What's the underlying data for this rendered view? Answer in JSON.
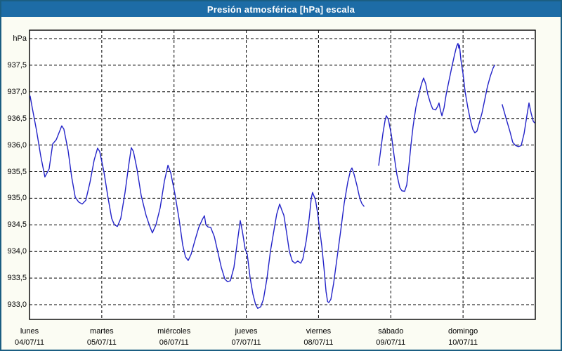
{
  "window": {
    "title": "Presión atmosférica [hPa] escala"
  },
  "colors": {
    "window_border": "#1b5e82",
    "title_bar_bg": "#1d6ca6",
    "title_text": "#ffffff",
    "background": "#fbfcf3",
    "plot_background": "#ffffff",
    "plot_border": "#000000",
    "grid": "#000000",
    "line": "#2323c8",
    "label_text": "#000000"
  },
  "chart_data": {
    "type": "line",
    "title": "Presión atmosférica [hPa] escala",
    "ylabel": "hPa",
    "xlabel": "",
    "ylim": [
      932.72,
      938.16
    ],
    "xlim_hours": [
      0,
      168
    ],
    "grid": "dashed",
    "legend_position": "none",
    "y_unit_label": "hPa",
    "y_ticks": [
      {
        "value": 938.0,
        "label": "hPa"
      },
      {
        "value": 937.5,
        "label": "937,5"
      },
      {
        "value": 937.0,
        "label": "937,0"
      },
      {
        "value": 936.5,
        "label": "936,5"
      },
      {
        "value": 936.0,
        "label": "936,0"
      },
      {
        "value": 935.5,
        "label": "935,5"
      },
      {
        "value": 935.0,
        "label": "935,0"
      },
      {
        "value": 934.5,
        "label": "934,5"
      },
      {
        "value": 934.0,
        "label": "934,0"
      },
      {
        "value": 933.5,
        "label": "933,5"
      },
      {
        "value": 933.0,
        "label": "933,0"
      }
    ],
    "x_ticks": [
      {
        "hour": 0,
        "day": "lunes",
        "date": "04/07/11"
      },
      {
        "hour": 24,
        "day": "martes",
        "date": "05/07/11"
      },
      {
        "hour": 48,
        "day": "miércoles",
        "date": "06/07/11"
      },
      {
        "hour": 72,
        "day": "jueves",
        "date": "07/07/11"
      },
      {
        "hour": 96,
        "day": "viernes",
        "date": "08/07/11"
      },
      {
        "hour": 120,
        "day": "sábado",
        "date": "09/07/11"
      },
      {
        "hour": 144,
        "day": "domingo",
        "date": "10/07/11"
      }
    ],
    "series": [
      {
        "name": "Presión atmosférica",
        "color": "#2323c8",
        "unit": "hPa",
        "segments": [
          [
            [
              0.2,
              936.92
            ],
            [
              0.9,
              936.7
            ],
            [
              2.3,
              936.28
            ],
            [
              3.7,
              935.8
            ],
            [
              5.1,
              935.4
            ],
            [
              6.5,
              935.55
            ],
            [
              7.7,
              936.02
            ],
            [
              8.9,
              936.1
            ],
            [
              10.7,
              936.36
            ],
            [
              11.4,
              936.3
            ],
            [
              12.8,
              935.9
            ],
            [
              14.0,
              935.4
            ],
            [
              15.2,
              935.02
            ],
            [
              16.3,
              934.93
            ],
            [
              17.5,
              934.89
            ],
            [
              18.7,
              934.96
            ],
            [
              20.1,
              935.3
            ],
            [
              21.5,
              935.72
            ],
            [
              22.6,
              935.94
            ],
            [
              23.3,
              935.88
            ],
            [
              24.7,
              935.5
            ],
            [
              26.1,
              935.0
            ],
            [
              27.3,
              934.62
            ],
            [
              28.2,
              934.5
            ],
            [
              29.2,
              934.47
            ],
            [
              30.3,
              934.62
            ],
            [
              31.7,
              935.1
            ],
            [
              32.9,
              935.6
            ],
            [
              33.8,
              935.95
            ],
            [
              34.5,
              935.88
            ],
            [
              35.7,
              935.55
            ],
            [
              37.1,
              935.05
            ],
            [
              38.7,
              934.68
            ],
            [
              39.9,
              934.48
            ],
            [
              40.8,
              934.35
            ],
            [
              41.5,
              934.44
            ],
            [
              42.0,
              934.5
            ],
            [
              43.4,
              934.82
            ],
            [
              44.8,
              935.32
            ],
            [
              46.0,
              935.62
            ],
            [
              46.9,
              935.48
            ],
            [
              48.3,
              935.08
            ],
            [
              49.7,
              934.6
            ],
            [
              50.9,
              934.12
            ],
            [
              51.8,
              933.9
            ],
            [
              52.7,
              933.83
            ],
            [
              53.7,
              933.95
            ],
            [
              54.8,
              934.18
            ],
            [
              56.2,
              934.45
            ],
            [
              57.4,
              934.6
            ],
            [
              58.1,
              934.67
            ],
            [
              58.6,
              934.5
            ],
            [
              59.3,
              934.46
            ],
            [
              60.2,
              934.45
            ],
            [
              61.4,
              934.28
            ],
            [
              62.5,
              934.0
            ],
            [
              63.7,
              933.7
            ],
            [
              64.9,
              933.48
            ],
            [
              65.8,
              933.43
            ],
            [
              66.7,
              933.45
            ],
            [
              67.9,
              933.7
            ],
            [
              69.1,
              934.2
            ],
            [
              70.0,
              934.58
            ],
            [
              70.7,
              934.38
            ],
            [
              71.6,
              934.05
            ],
            [
              72.3,
              933.95
            ],
            [
              73.3,
              933.5
            ],
            [
              74.2,
              933.2
            ],
            [
              75.1,
              933.0
            ],
            [
              75.8,
              932.93
            ],
            [
              76.8,
              932.96
            ],
            [
              77.7,
              933.1
            ],
            [
              78.9,
              933.5
            ],
            [
              80.0,
              934.0
            ],
            [
              81.2,
              934.4
            ],
            [
              82.1,
              934.7
            ],
            [
              83.1,
              934.89
            ],
            [
              83.8,
              934.78
            ],
            [
              84.5,
              934.68
            ],
            [
              85.4,
              934.35
            ],
            [
              86.3,
              934.0
            ],
            [
              87.3,
              933.82
            ],
            [
              88.2,
              933.78
            ],
            [
              89.1,
              933.82
            ],
            [
              90.1,
              933.78
            ],
            [
              90.8,
              933.86
            ],
            [
              91.9,
              934.2
            ],
            [
              92.9,
              934.62
            ],
            [
              93.6,
              935.0
            ],
            [
              94.0,
              935.11
            ],
            [
              95.0,
              934.97
            ],
            [
              95.7,
              934.72
            ],
            [
              96.1,
              934.53
            ],
            [
              97.1,
              934.1
            ],
            [
              97.8,
              933.7
            ],
            [
              98.5,
              933.25
            ],
            [
              99.0,
              933.06
            ],
            [
              99.4,
              933.04
            ],
            [
              100.1,
              933.1
            ],
            [
              101.0,
              933.4
            ],
            [
              102.2,
              933.9
            ],
            [
              103.4,
              934.4
            ],
            [
              104.5,
              934.9
            ],
            [
              105.7,
              935.3
            ],
            [
              106.6,
              935.52
            ],
            [
              107.1,
              935.57
            ],
            [
              107.8,
              935.45
            ],
            [
              108.7,
              935.25
            ],
            [
              109.7,
              935.0
            ],
            [
              110.4,
              934.9
            ],
            [
              111.1,
              934.85
            ]
          ],
          [
            [
              116.0,
              935.62
            ],
            [
              116.7,
              935.92
            ],
            [
              117.4,
              936.22
            ],
            [
              118.1,
              936.46
            ],
            [
              118.5,
              936.55
            ],
            [
              119.2,
              936.48
            ],
            [
              120.2,
              936.19
            ],
            [
              121.1,
              935.8
            ],
            [
              122.0,
              935.45
            ],
            [
              123.0,
              935.2
            ],
            [
              123.7,
              935.14
            ],
            [
              124.6,
              935.13
            ],
            [
              125.3,
              935.25
            ],
            [
              126.0,
              935.6
            ],
            [
              126.7,
              936.0
            ],
            [
              127.4,
              936.35
            ],
            [
              128.3,
              936.7
            ],
            [
              129.3,
              936.95
            ],
            [
              130.2,
              937.15
            ],
            [
              130.9,
              937.26
            ],
            [
              131.6,
              937.15
            ],
            [
              132.3,
              936.95
            ],
            [
              133.2,
              936.78
            ],
            [
              133.9,
              936.68
            ],
            [
              134.9,
              936.66
            ],
            [
              135.6,
              936.73
            ],
            [
              136.0,
              936.79
            ],
            [
              136.5,
              936.65
            ],
            [
              137.0,
              936.55
            ],
            [
              137.7,
              936.7
            ],
            [
              138.4,
              936.95
            ],
            [
              139.3,
              937.2
            ],
            [
              140.2,
              937.45
            ],
            [
              141.2,
              937.7
            ],
            [
              141.9,
              937.86
            ],
            [
              142.3,
              937.91
            ],
            [
              142.6,
              937.82
            ],
            [
              142.8,
              937.88
            ],
            [
              143.3,
              937.6
            ],
            [
              144.0,
              937.34
            ],
            [
              144.7,
              937.0
            ],
            [
              145.6,
              936.7
            ],
            [
              146.5,
              936.45
            ],
            [
              147.2,
              936.3
            ],
            [
              147.9,
              936.23
            ],
            [
              148.6,
              936.26
            ],
            [
              149.3,
              936.4
            ],
            [
              150.3,
              936.6
            ],
            [
              151.2,
              936.85
            ],
            [
              152.1,
              937.1
            ],
            [
              153.1,
              937.3
            ],
            [
              154.0,
              937.45
            ],
            [
              154.5,
              937.5
            ]
          ],
          [
            [
              157.0,
              936.76
            ],
            [
              158.3,
              936.5
            ],
            [
              159.6,
              936.25
            ],
            [
              160.5,
              936.05
            ],
            [
              161.5,
              935.99
            ],
            [
              162.4,
              935.97
            ],
            [
              163.3,
              935.99
            ],
            [
              164.3,
              936.22
            ],
            [
              165.2,
              936.55
            ],
            [
              165.9,
              936.79
            ],
            [
              166.6,
              936.6
            ],
            [
              167.3,
              936.45
            ],
            [
              167.7,
              936.42
            ]
          ]
        ]
      }
    ]
  }
}
